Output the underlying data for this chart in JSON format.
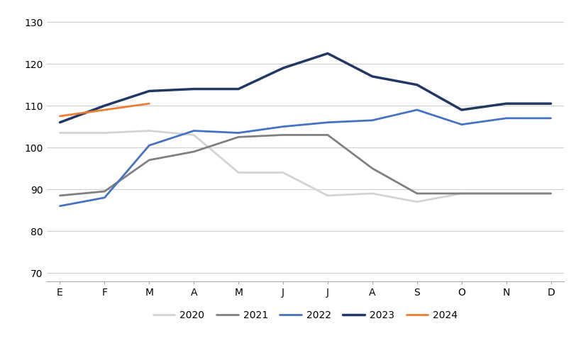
{
  "months": [
    "E",
    "F",
    "M",
    "A",
    "M",
    "J",
    "J",
    "A",
    "S",
    "O",
    "N",
    "D"
  ],
  "series": {
    "2020": [
      103.5,
      103.5,
      104.0,
      103.0,
      94.0,
      94.0,
      88.5,
      89.0,
      87.0,
      89.0,
      89.0,
      89.0
    ],
    "2021": [
      88.5,
      89.5,
      97.0,
      99.0,
      102.5,
      103.0,
      103.0,
      95.0,
      89.0,
      89.0,
      89.0,
      89.0
    ],
    "2022": [
      86.0,
      88.0,
      100.5,
      104.0,
      103.5,
      105.0,
      106.0,
      106.5,
      109.0,
      105.5,
      107.0,
      107.0
    ],
    "2023": [
      106.0,
      110.0,
      113.5,
      114.0,
      114.0,
      119.0,
      122.5,
      117.0,
      115.0,
      109.0,
      110.5,
      110.5
    ],
    "2024": [
      107.5,
      109.0,
      110.5,
      null,
      null,
      null,
      null,
      null,
      null,
      null,
      null,
      null
    ]
  },
  "colors": {
    "2020": "#d3d3d3",
    "2021": "#808080",
    "2022": "#4472c4",
    "2023": "#1f3864",
    "2024": "#ed7d31"
  },
  "linewidths": {
    "2020": 2.0,
    "2021": 2.0,
    "2022": 2.0,
    "2023": 2.5,
    "2024": 2.0
  },
  "ylim": [
    68,
    132
  ],
  "yticks": [
    70,
    80,
    90,
    100,
    110,
    120,
    130
  ],
  "background_color": "#ffffff",
  "grid_color": "#d0d0d0",
  "legend_order": [
    "2020",
    "2021",
    "2022",
    "2023",
    "2024"
  ]
}
